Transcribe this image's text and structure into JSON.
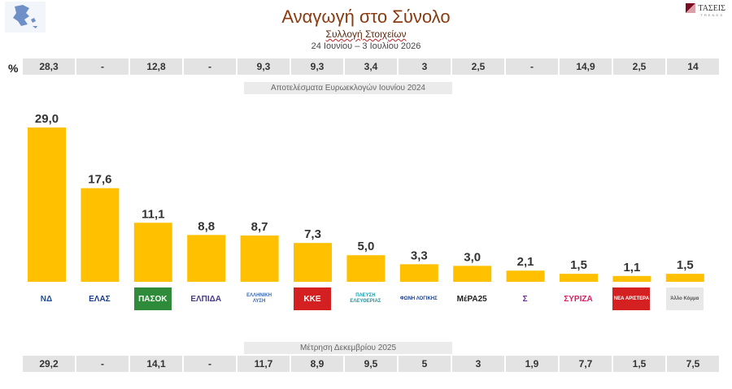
{
  "header": {
    "title": "Αναγωγή στο Σύνολο",
    "subtitle": "Συλλογή Στοιχείων",
    "date_range": "24 Ιουνίου – 3 Ιουλίου 2026",
    "brand": "ΤΑΣΕΙΣ",
    "brand_sub": "TRENDS",
    "percent_sign": "%"
  },
  "top_row": {
    "label": "Αποτελέσματα Ευρωεκλογών Ιουνίου 2024",
    "values": [
      "28,3",
      "-",
      "12,8",
      "-",
      "9,3",
      "9,3",
      "3,4",
      "3",
      "2,5",
      "-",
      "14,9",
      "2,5",
      "14"
    ]
  },
  "bottom_row": {
    "label": "Μέτρηση Δεκεμβρίου 2025",
    "values": [
      "29,2",
      "-",
      "14,1",
      "-",
      "11,7",
      "8,9",
      "9,5",
      "5",
      "3",
      "1,9",
      "7,7",
      "1,5",
      "7,5"
    ]
  },
  "logos": [
    {
      "text": "ΝΔ",
      "color": "#1a4fa0",
      "bg": "#ffffff",
      "name": "nd-logo"
    },
    {
      "text": "ΕΛΑΣ",
      "color": "#1a3e8a",
      "bg": "#ffffff",
      "name": "elas-logo"
    },
    {
      "text": "ΠΑΣΟΚ",
      "color": "#ffffff",
      "bg": "#2e8b3a",
      "name": "pasok-logo"
    },
    {
      "text": "ΕΛΠΙΔΑ",
      "color": "#4a3a8a",
      "bg": "#ffffff",
      "name": "elpida-logo"
    },
    {
      "text": "ΕΛΛΗΝΙΚΗ ΛΥΣΗ",
      "color": "#3a6ab0",
      "bg": "#ffffff",
      "name": "elliniki-lysi-logo"
    },
    {
      "text": "ΚΚΕ",
      "color": "#ffffff",
      "bg": "#d42020",
      "name": "kke-logo"
    },
    {
      "text": "ΠΛΕΥΣΗ ΕΛΕΥΘΕΡΙΑΣ",
      "color": "#1a9aa8",
      "bg": "#ffffff",
      "name": "plefsi-logo"
    },
    {
      "text": "ΦΩΝΗ ΛΟΓΙΚΗΣ",
      "color": "#1a3e8a",
      "bg": "#ffffff",
      "name": "foni-logikis-logo"
    },
    {
      "text": "ΜέΡΑ25",
      "color": "#222222",
      "bg": "#ffffff",
      "name": "mera25-logo"
    },
    {
      "text": "Σ",
      "color": "#6a2aa0",
      "bg": "#ffffff",
      "name": "party-z-logo"
    },
    {
      "text": "ΣΥΡΙΖΑ",
      "color": "#d42060",
      "bg": "#ffffff",
      "name": "syriza-logo"
    },
    {
      "text": "ΝΕΑ ΑΡΙΣΤΕΡΑ",
      "color": "#ffffff",
      "bg": "#d42020",
      "name": "nea-aristera-logo"
    },
    {
      "text": "Άλλο Κόμμα",
      "color": "#555555",
      "bg": "#e8e8e8",
      "name": "other-party-logo"
    }
  ],
  "chart_data": {
    "type": "bar",
    "categories": [
      "ΝΔ",
      "ΕΛΑΣ",
      "ΠΑΣΟΚ",
      "ΕΛΠΙΔΑ",
      "Ελληνική Λύση",
      "ΚΚΕ",
      "Πλεύση Ελευθερίας",
      "Φωνή Λογικής",
      "ΜέΡΑ25",
      "Σ",
      "ΣΥΡΙΖΑ",
      "Νέα Αριστερά",
      "Άλλο Κόμμα"
    ],
    "values": [
      29.0,
      17.6,
      11.1,
      8.8,
      8.7,
      7.3,
      5.0,
      3.3,
      3.0,
      2.1,
      1.5,
      1.1,
      1.5
    ],
    "labels": [
      "29,0",
      "17,6",
      "11,1",
      "8,8",
      "8,7",
      "7,3",
      "5,0",
      "3,3",
      "3,0",
      "2,1",
      "1,5",
      "1,1",
      "1,5"
    ],
    "ylim": [
      0,
      29
    ],
    "bar_color": "#ffc000",
    "grid": false,
    "legend": "none"
  }
}
